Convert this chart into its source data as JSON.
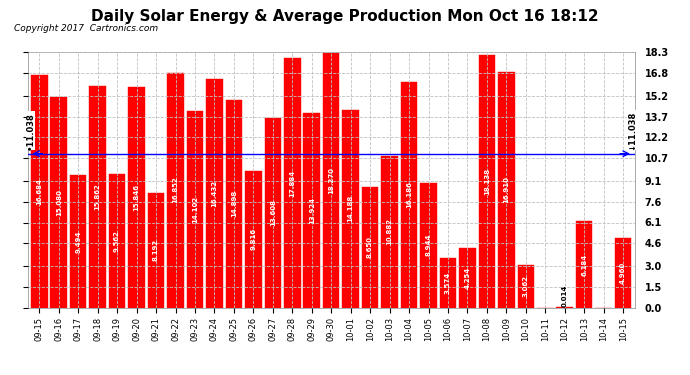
{
  "title": "Daily Solar Energy & Average Production Mon Oct 16 18:12",
  "copyright": "Copyright 2017  Cartronics.com",
  "categories": [
    "09-15",
    "09-16",
    "09-17",
    "09-18",
    "09-19",
    "09-20",
    "09-21",
    "09-22",
    "09-23",
    "09-24",
    "09-25",
    "09-26",
    "09-27",
    "09-28",
    "09-29",
    "09-30",
    "10-01",
    "10-02",
    "10-03",
    "10-04",
    "10-05",
    "10-06",
    "10-07",
    "10-08",
    "10-09",
    "10-10",
    "10-11",
    "10-12",
    "10-13",
    "10-14",
    "10-15"
  ],
  "values": [
    16.684,
    15.08,
    9.494,
    15.862,
    9.562,
    15.846,
    8.192,
    16.852,
    14.102,
    16.432,
    14.898,
    9.816,
    13.608,
    17.884,
    13.924,
    18.27,
    14.188,
    8.65,
    10.882,
    16.186,
    8.944,
    3.574,
    4.254,
    18.138,
    16.91,
    3.062,
    0.0,
    0.014,
    6.184,
    0.0,
    4.96
  ],
  "average": 11.038,
  "bar_color": "#ff0000",
  "average_line_color": "#0000ff",
  "background_color": "#ffffff",
  "grid_color": "#c0c0c0",
  "ylim": [
    0,
    18.3
  ],
  "yticks": [
    0.0,
    1.5,
    3.0,
    4.6,
    6.1,
    7.6,
    9.1,
    10.7,
    12.2,
    13.7,
    15.2,
    16.8,
    18.3
  ],
  "title_fontsize": 11,
  "copyright_fontsize": 6.5,
  "bar_label_fontsize": 5.0,
  "avg_label_fontsize": 6.0,
  "xtick_fontsize": 6.0,
  "ytick_fontsize": 7.0,
  "legend_avg_color": "#0000cc",
  "legend_daily_color": "#ff0000",
  "legend_text_color": "#ffffff"
}
